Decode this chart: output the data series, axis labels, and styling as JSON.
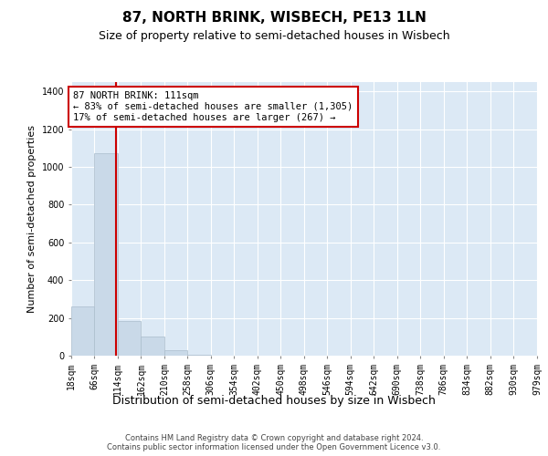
{
  "title": "87, NORTH BRINK, WISBECH, PE13 1LN",
  "subtitle": "Size of property relative to semi-detached houses in Wisbech",
  "xlabel": "Distribution of semi-detached houses by size in Wisbech",
  "ylabel": "Number of semi-detached properties",
  "footer_line1": "Contains HM Land Registry data © Crown copyright and database right 2024.",
  "footer_line2": "Contains public sector information licensed under the Open Government Licence v3.0.",
  "annotation_line1": "87 NORTH BRINK: 111sqm",
  "annotation_line2": "← 83% of semi-detached houses are smaller (1,305)",
  "annotation_line3": "17% of semi-detached houses are larger (267) →",
  "property_size": 111,
  "bin_edges": [
    18,
    66,
    114,
    162,
    210,
    258,
    306,
    354,
    402,
    450,
    498,
    546,
    594,
    642,
    690,
    738,
    786,
    834,
    882,
    930,
    979
  ],
  "bar_heights": [
    260,
    1075,
    185,
    100,
    30,
    5,
    2,
    2,
    1,
    1,
    1,
    1,
    0,
    0,
    0,
    0,
    0,
    0,
    0,
    1
  ],
  "bar_color": "#c9d9e8",
  "bar_edge_color": "#aabdcc",
  "red_line_color": "#cc0000",
  "plot_bg_color": "#dce9f5",
  "ylim_max": 1450,
  "yticks": [
    0,
    200,
    400,
    600,
    800,
    1000,
    1200,
    1400
  ],
  "grid_color": "#ffffff",
  "title_fontsize": 11,
  "subtitle_fontsize": 9,
  "tick_fontsize": 7,
  "ylabel_fontsize": 8,
  "xlabel_fontsize": 9,
  "annotation_fontsize": 7.5,
  "footer_fontsize": 6
}
